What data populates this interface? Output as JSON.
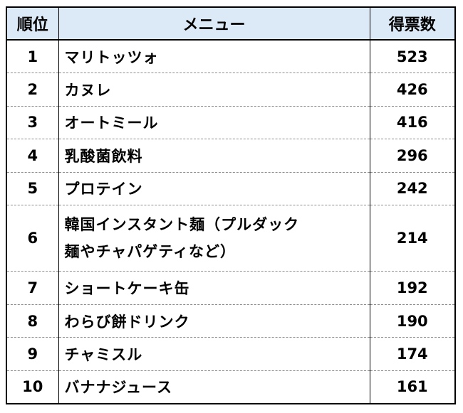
{
  "header": {
    "rank": "順位",
    "menu": "メニュー",
    "votes": "得票数"
  },
  "rows": [
    {
      "rank": "1",
      "menu": "マリトッツォ",
      "votes": "523"
    },
    {
      "rank": "2",
      "menu": "カヌレ",
      "votes": "426"
    },
    {
      "rank": "3",
      "menu": "オートミール",
      "votes": "416"
    },
    {
      "rank": "4",
      "menu": "乳酸菌飲料",
      "votes": "296"
    },
    {
      "rank": "5",
      "menu": "プロテイン",
      "votes": "242"
    },
    {
      "rank": "6",
      "menu_line1": "韓国インスタント麺（プルダック",
      "menu_line2": "麺やチャパゲティなど）",
      "votes": "214"
    },
    {
      "rank": "7",
      "menu": "ショートケーキ缶",
      "votes": "192"
    },
    {
      "rank": "8",
      "menu": "わらび餅ドリンク",
      "votes": "190"
    },
    {
      "rank": "9",
      "menu": "チャミスル",
      "votes": "174"
    },
    {
      "rank": "10",
      "menu": "バナナジュース",
      "votes": "161"
    }
  ],
  "colors": {
    "header_bg": "#dce9f6",
    "border": "#000000",
    "row_divider": "#8c8c8c"
  }
}
